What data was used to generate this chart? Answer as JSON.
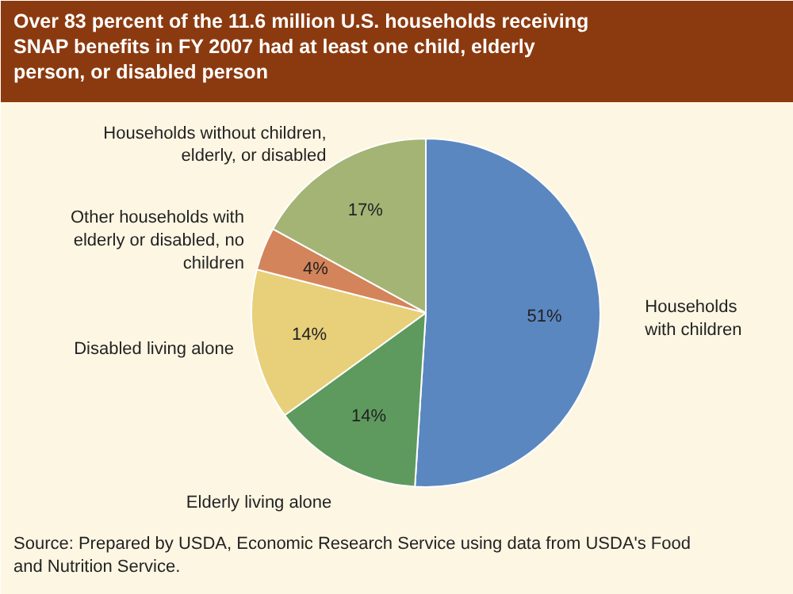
{
  "chart_data": {
    "type": "pie",
    "title": "Over 83 percent of the 11.6 million U.S. households receiving SNAP benefits in FY 2007 had at least one child, elderly person, or disabled person",
    "categories": [
      "Households with children",
      "Elderly living alone",
      "Disabled living alone",
      "Other households with elderly or disabled, no children",
      "Households without children, elderly, or disabled"
    ],
    "values": [
      51,
      14,
      14,
      4,
      17
    ],
    "colors": [
      "#5b87c0",
      "#5e9a5e",
      "#e8cf7a",
      "#d4845a",
      "#a3b475"
    ],
    "value_labels": [
      "51%",
      "14%",
      "14%",
      "4%",
      "17%"
    ],
    "annotations": [
      "Source: Prepared by USDA, Economic Research Service using data from USDA's Food and Nutrition Service."
    ]
  }
}
